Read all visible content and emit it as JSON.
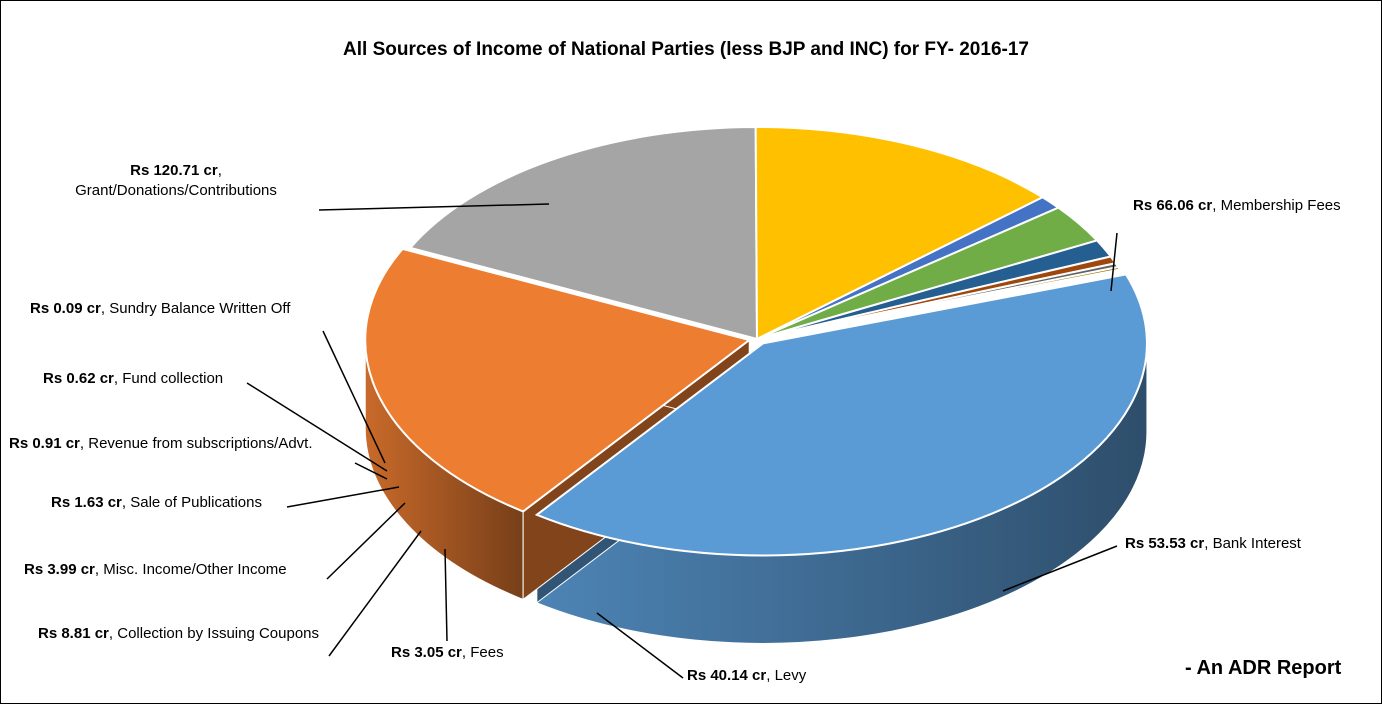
{
  "chart_data": {
    "type": "pie",
    "title": "All Sources of Income of National Parties (less BJP and INC) for FY- 2016-17",
    "unit": "Rs cr",
    "slices": [
      {
        "label": "Grant/Donations/Contributions",
        "value": 120.71,
        "value_text": "Rs 120.71 cr",
        "color": "#5b9bd5"
      },
      {
        "label": "Membership Fees",
        "value": 66.06,
        "value_text": "Rs 66.06 cr",
        "color": "#ed7d31"
      },
      {
        "label": "Bank Interest",
        "value": 53.53,
        "value_text": "Rs 53.53 cr",
        "color": "#a5a5a5"
      },
      {
        "label": "Levy",
        "value": 40.14,
        "value_text": "Rs 40.14 cr",
        "color": "#ffc000"
      },
      {
        "label": "Fees",
        "value": 3.05,
        "value_text": "Rs 3.05 cr",
        "color": "#4472c4"
      },
      {
        "label": "Collection by Issuing Coupons",
        "value": 8.81,
        "value_text": "Rs 8.81 cr",
        "color": "#70ad47"
      },
      {
        "label": "Misc. Income/Other Income",
        "value": 3.99,
        "value_text": "Rs 3.99 cr",
        "color": "#255e91"
      },
      {
        "label": "Sale of Publications",
        "value": 1.63,
        "value_text": "Rs 1.63 cr",
        "color": "#9e480e"
      },
      {
        "label": "Revenue from subscriptions/Advt.",
        "value": 0.91,
        "value_text": "Rs 0.91 cr",
        "color": "#636363"
      },
      {
        "label": "Fund collection",
        "value": 0.62,
        "value_text": "Rs 0.62 cr",
        "color": "#997300"
      },
      {
        "label": "Sundry Balance Written Off",
        "value": 0.09,
        "value_text": "Rs 0.09 cr",
        "color": "#264478"
      }
    ],
    "legend": "none"
  },
  "footer": {
    "credit": "- An ADR Report"
  }
}
